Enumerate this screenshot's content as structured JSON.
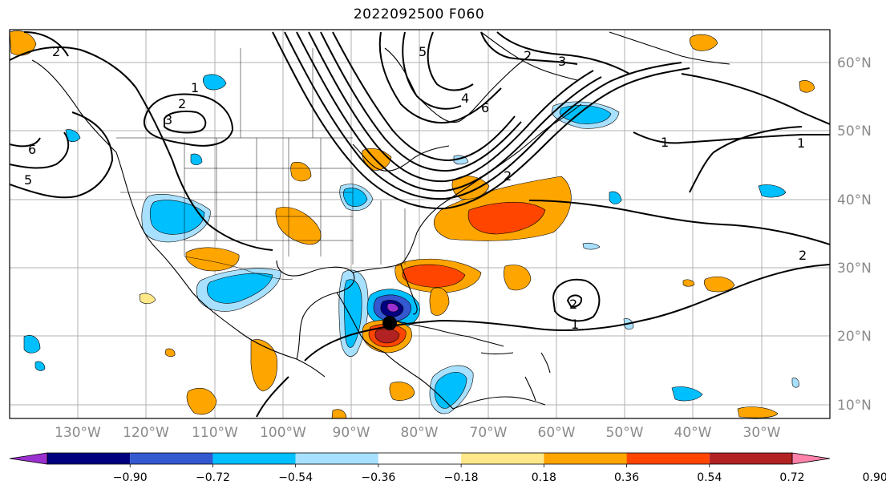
{
  "title": "2022092500 F060",
  "map": {
    "lon_labels": [
      "130°W",
      "120°W",
      "110°W",
      "100°W",
      "90°W",
      "80°W",
      "70°W",
      "60°W",
      "50°W",
      "40°W",
      "30°W"
    ],
    "lat_labels": [
      "60°N",
      "50°N",
      "40°N",
      "30°N",
      "20°N",
      "10°N"
    ],
    "contour_labels": [
      "2",
      "1",
      "2",
      "3",
      "5",
      "6",
      "5",
      "4",
      "6",
      "3",
      "2",
      "1",
      "1",
      "2",
      "2",
      "1",
      "2"
    ],
    "storm_marker": "black-dot"
  },
  "colorbar": {
    "ticks": [
      "−0.90",
      "−0.72",
      "−0.54",
      "−0.36",
      "−0.18",
      "0.18",
      "0.36",
      "0.54",
      "0.72",
      "0.90"
    ],
    "colors": [
      "#9b30d0",
      "#000080",
      "#3458d0",
      "#00bfff",
      "#a8e0ff",
      "#ffffff",
      "#ffe88a",
      "#ffa500",
      "#ff4500",
      "#b22222",
      "#ff82ab"
    ]
  }
}
